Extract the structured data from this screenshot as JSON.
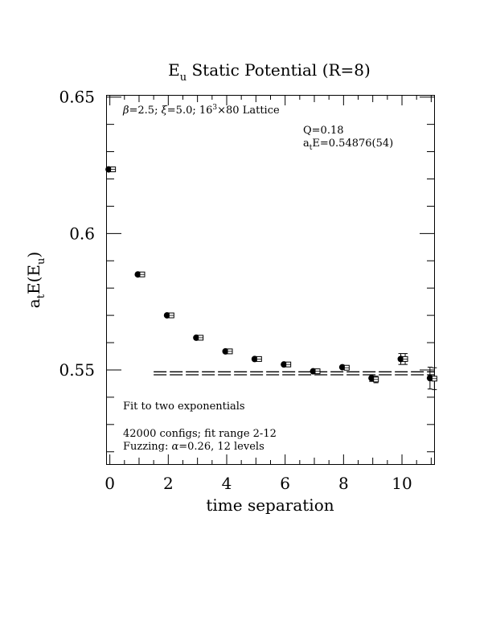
{
  "chart_data": {
    "type": "scatter",
    "title_main": "E",
    "title_sub": "u",
    "title_rest": " Static Potential (R=8)",
    "xlabel": "time separation",
    "ylabel_a": "a",
    "ylabel_t": "t",
    "ylabel_E": "E(E",
    "ylabel_u": "u",
    "ylabel_close": ")",
    "xlim": [
      -0.1,
      11.1
    ],
    "ylim": [
      0.5155,
      0.6505
    ],
    "xticks": [
      0,
      2,
      4,
      6,
      8,
      10
    ],
    "xtick_labels": [
      "0",
      "2",
      "4",
      "6",
      "8",
      "10"
    ],
    "yticks": [
      0.55,
      0.6,
      0.65
    ],
    "ytick_labels": [
      "0.55",
      "0.6",
      "0.65"
    ],
    "grid": false,
    "annotation_lattice": {
      "beta": "β",
      "beta_val": "=2.5; ",
      "xi": "ξ",
      "xi_val": "=5.0; 16",
      "sup": "3",
      "rest": "×80 Lattice"
    },
    "annotation_q": "Q=0.18",
    "annotation_fit_a": "a",
    "annotation_fit_t": "t",
    "annotation_fit_rest": "E=0.54876(54)",
    "note_fit": "Fit to two exponentials",
    "note_configs": "42000 configs; fit range 2-12",
    "note_fuzzing_pre": "Fuzzing: ",
    "note_fuzzing_alpha": "α",
    "note_fuzzing_post": "=0.26, 12 levels",
    "series": [
      {
        "marker": "filled-circle",
        "points": [
          {
            "x": 0,
            "y": 0.6235,
            "err": 0.0004
          },
          {
            "x": 1,
            "y": 0.585,
            "err": 0.0004
          },
          {
            "x": 2,
            "y": 0.57,
            "err": 0.0004
          },
          {
            "x": 3,
            "y": 0.5618,
            "err": 0.0004
          },
          {
            "x": 4,
            "y": 0.5568,
            "err": 0.0004
          },
          {
            "x": 5,
            "y": 0.554,
            "err": 0.0004
          },
          {
            "x": 6,
            "y": 0.552,
            "err": 0.0004
          },
          {
            "x": 7,
            "y": 0.5495,
            "err": 0.0005
          },
          {
            "x": 8,
            "y": 0.551,
            "err": 0.0006
          },
          {
            "x": 9,
            "y": 0.547,
            "err": 0.0012
          },
          {
            "x": 10,
            "y": 0.554,
            "err": 0.002
          },
          {
            "x": 11,
            "y": 0.547,
            "err": 0.004
          }
        ]
      },
      {
        "marker": "open-square",
        "points": [
          {
            "x": 0,
            "y": 0.6235,
            "err": 0.0004
          },
          {
            "x": 1,
            "y": 0.585,
            "err": 0.0004
          },
          {
            "x": 2,
            "y": 0.57,
            "err": 0.0004
          },
          {
            "x": 3,
            "y": 0.5618,
            "err": 0.0004
          },
          {
            "x": 4,
            "y": 0.5568,
            "err": 0.0004
          },
          {
            "x": 5,
            "y": 0.554,
            "err": 0.0004
          },
          {
            "x": 6,
            "y": 0.552,
            "err": 0.0004
          },
          {
            "x": 7,
            "y": 0.5495,
            "err": 0.0005
          },
          {
            "x": 8,
            "y": 0.5508,
            "err": 0.0006
          },
          {
            "x": 9,
            "y": 0.5465,
            "err": 0.0012
          },
          {
            "x": 10,
            "y": 0.554,
            "err": 0.002
          },
          {
            "x": 11,
            "y": 0.5468,
            "err": 0.004
          }
        ]
      }
    ],
    "fit_band": {
      "x_from": 1.5,
      "x_to": 11.1,
      "center": 0.54876,
      "err": 0.00054
    }
  }
}
